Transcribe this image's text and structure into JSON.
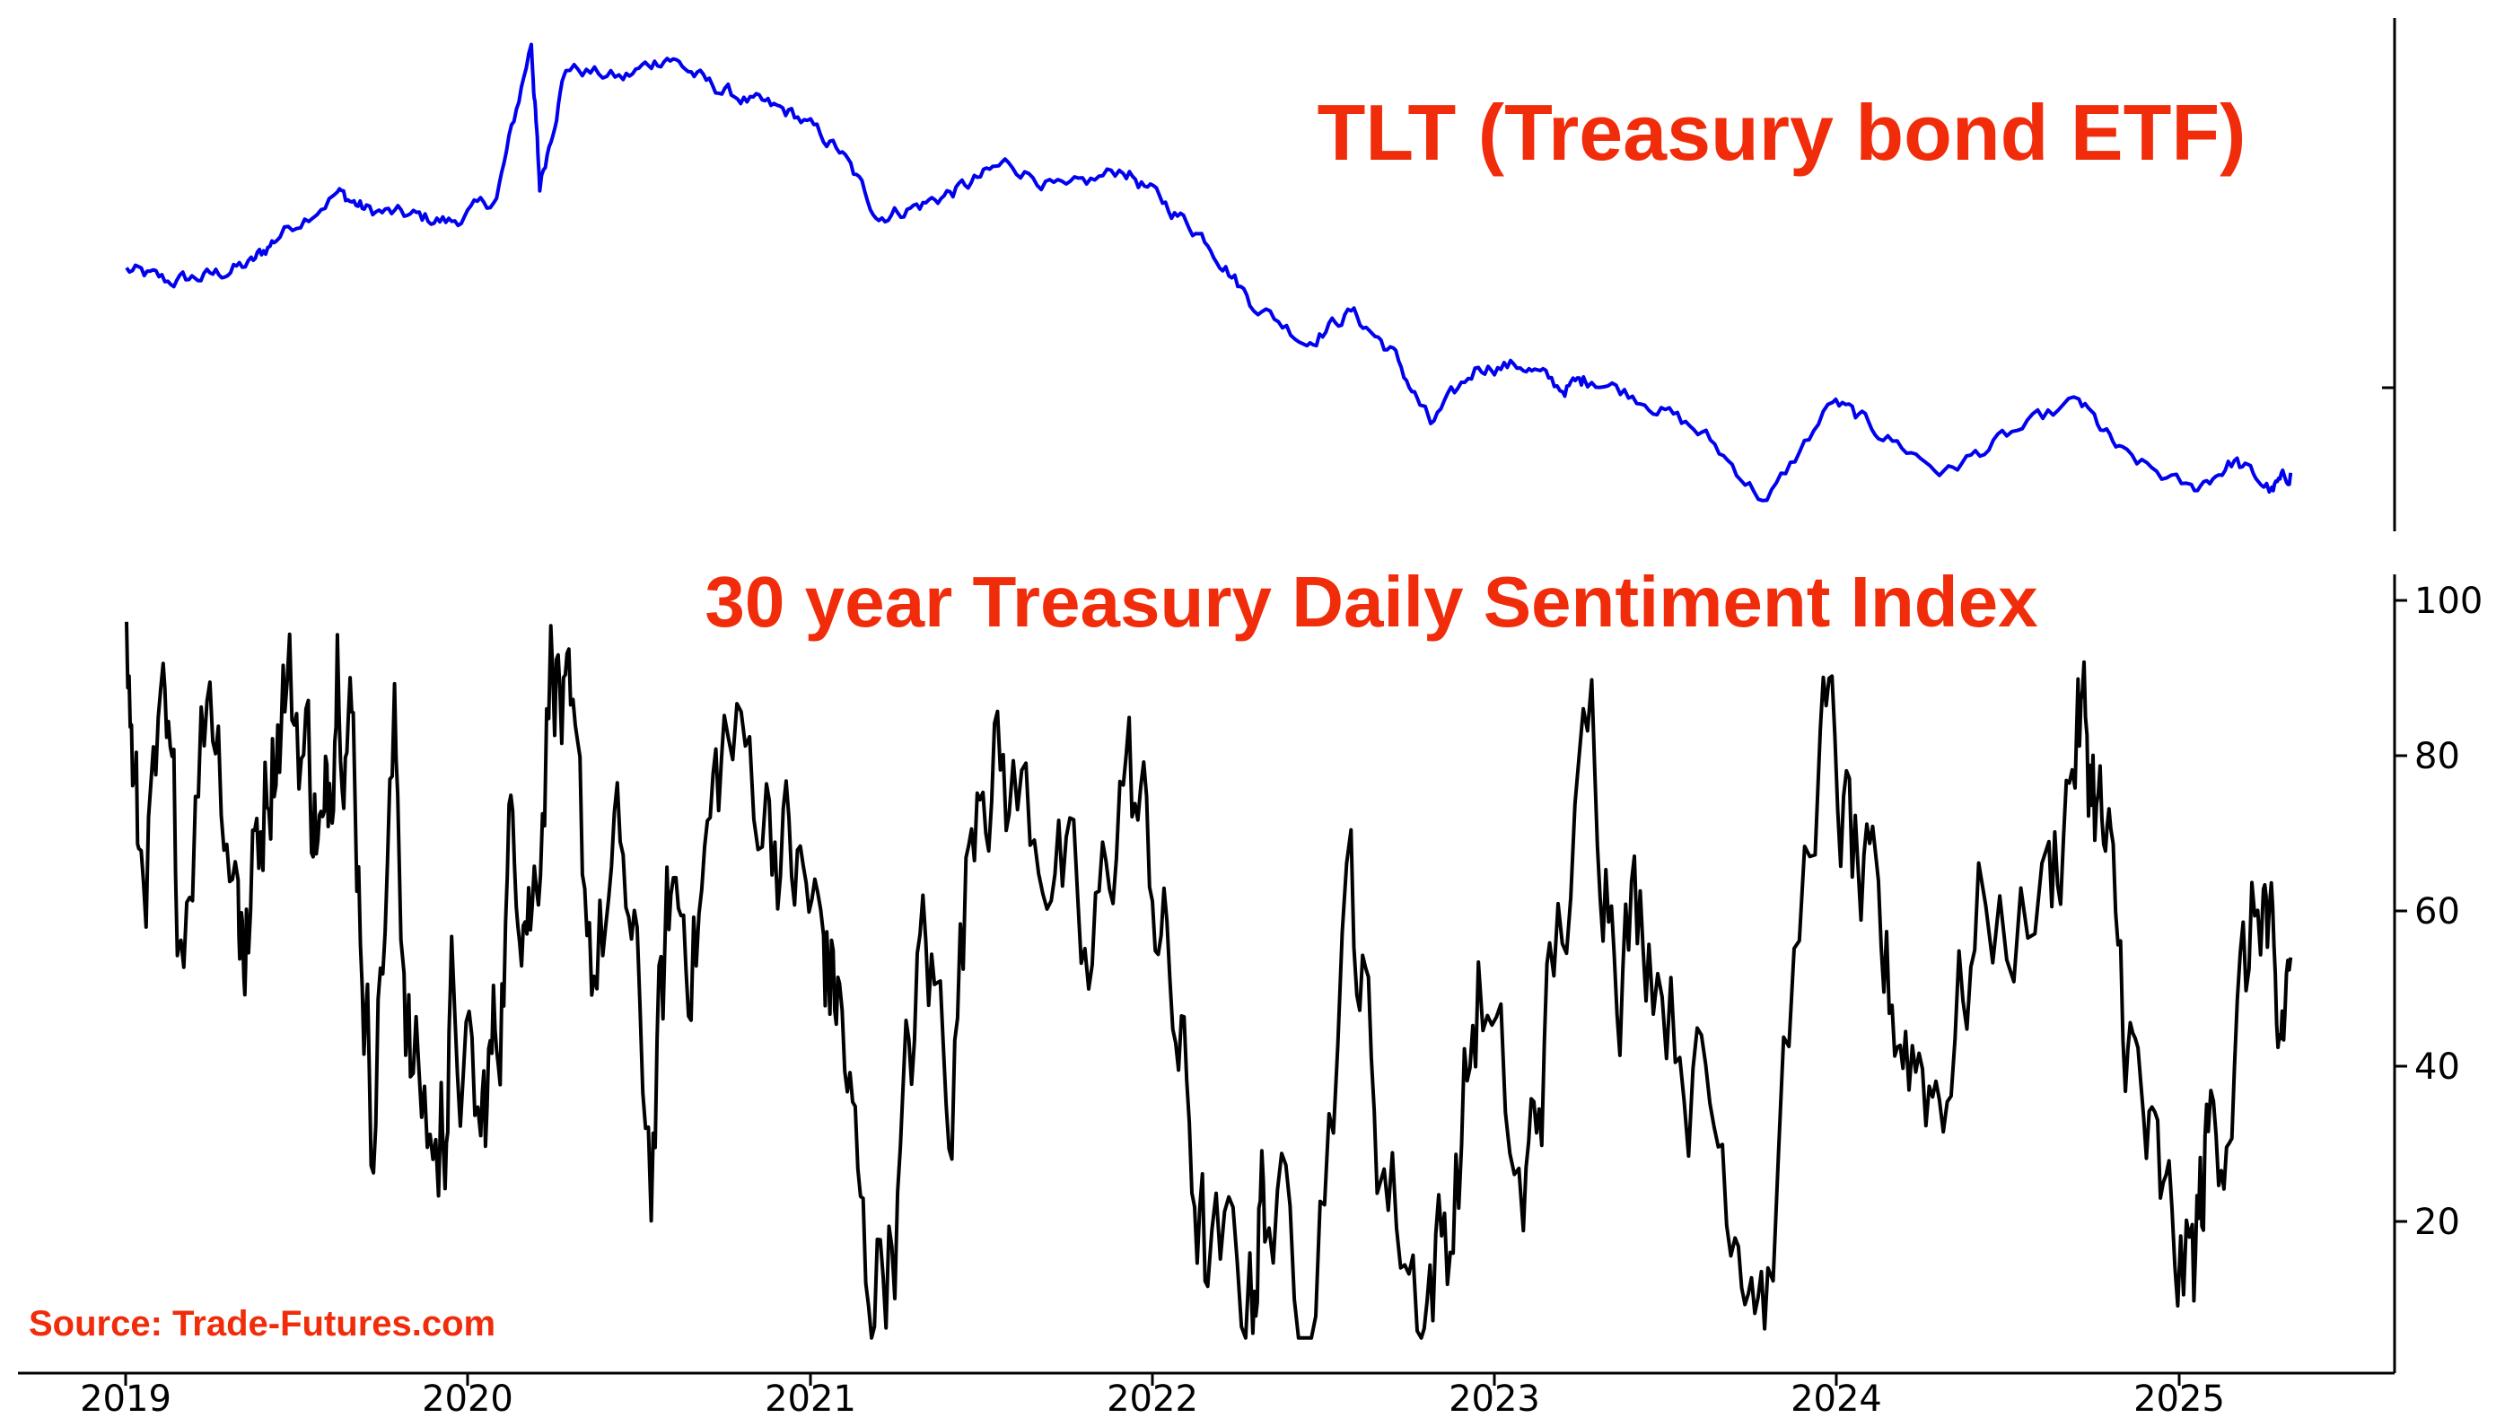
{
  "colors": {
    "tlt_line": "#0000ee",
    "sentiment_line": "#000000",
    "title_red": "#f02c0a",
    "axis": "#000000",
    "background": "#ffffff"
  },
  "source": "Source: Trade-Futures.com",
  "chart_data": [
    {
      "type": "line",
      "title": "TLT (Treasury bond ETF)",
      "xlabel": "",
      "ylabel": "",
      "y_tick_labels_shown": false,
      "grid": false,
      "x_range": [
        "2019-01-01",
        "2025-04-30"
      ],
      "y_scale": "relative price (no printed tick labels)",
      "series": [
        {
          "values": [
            [
              "2019-01-02",
              86
            ],
            [
              "2019-02-15",
              84
            ],
            [
              "2019-04-01",
              85
            ],
            [
              "2019-05-15",
              87
            ],
            [
              "2019-06-15",
              92
            ],
            [
              "2019-08-15",
              99
            ],
            [
              "2019-09-15",
              96
            ],
            [
              "2019-11-01",
              95
            ],
            [
              "2019-12-15",
              94
            ],
            [
              "2020-02-01",
              98
            ],
            [
              "2020-03-09",
              124
            ],
            [
              "2020-03-18",
              100
            ],
            [
              "2020-04-15",
              120
            ],
            [
              "2020-06-15",
              118
            ],
            [
              "2020-08-01",
              122
            ],
            [
              "2020-09-15",
              117
            ],
            [
              "2020-11-01",
              114
            ],
            [
              "2020-12-15",
              112
            ],
            [
              "2021-02-01",
              106
            ],
            [
              "2021-03-15",
              95
            ],
            [
              "2021-05-01",
              97
            ],
            [
              "2021-06-15",
              100
            ],
            [
              "2021-07-31",
              104
            ],
            [
              "2021-10-01",
              99
            ],
            [
              "2021-12-01",
              103
            ],
            [
              "2022-01-15",
              97
            ],
            [
              "2022-03-01",
              91
            ],
            [
              "2022-04-15",
              81
            ],
            [
              "2022-06-15",
              74
            ],
            [
              "2022-08-01",
              79
            ],
            [
              "2022-09-15",
              72
            ],
            [
              "2022-10-25",
              60
            ],
            [
              "2022-12-15",
              70
            ],
            [
              "2023-02-01",
              70
            ],
            [
              "2023-03-15",
              66
            ],
            [
              "2023-04-15",
              68
            ],
            [
              "2023-06-15",
              64
            ],
            [
              "2023-08-15",
              58
            ],
            [
              "2023-10-19",
              47
            ],
            [
              "2023-12-28",
              64
            ],
            [
              "2024-02-15",
              59
            ],
            [
              "2024-04-25",
              52
            ],
            [
              "2024-07-01",
              58
            ],
            [
              "2024-09-16",
              64
            ],
            [
              "2024-11-01",
              55
            ],
            [
              "2025-01-14",
              49
            ],
            [
              "2025-03-01",
              54
            ],
            [
              "2025-04-10",
              49
            ],
            [
              "2025-04-30",
              52
            ]
          ]
        }
      ]
    },
    {
      "type": "line",
      "title": "30 year Treasury Daily Sentiment Index",
      "xlabel": "",
      "ylabel": "",
      "grid": false,
      "ylim": [
        2,
        102
      ],
      "y_ticks": [
        "20",
        "40",
        "60",
        "80",
        "100"
      ],
      "x_ticks": [
        "2019",
        "2020",
        "2021",
        "2022",
        "2023",
        "2024",
        "2025"
      ],
      "x_range": [
        "2019-01-01",
        "2025-04-30"
      ],
      "series": [
        {
          "values": [
            [
              "2019-01-02",
              92
            ],
            [
              "2019-01-15",
              65
            ],
            [
              "2019-02-10",
              78
            ],
            [
              "2019-03-01",
              60
            ],
            [
              "2019-04-01",
              93
            ],
            [
              "2019-05-01",
              63
            ],
            [
              "2019-05-10",
              55
            ],
            [
              "2019-06-01",
              80
            ],
            [
              "2019-06-20",
              90
            ],
            [
              "2019-07-15",
              80
            ],
            [
              "2019-08-01",
              65
            ],
            [
              "2019-08-15",
              98
            ],
            [
              "2019-09-01",
              80
            ],
            [
              "2019-09-20",
              35
            ],
            [
              "2019-10-15",
              80
            ],
            [
              "2019-11-01",
              40
            ],
            [
              "2019-12-01",
              28
            ],
            [
              "2019-12-15",
              45
            ],
            [
              "2020-01-15",
              30
            ],
            [
              "2020-02-01",
              45
            ],
            [
              "2020-02-20",
              73
            ],
            [
              "2020-03-10",
              60
            ],
            [
              "2020-04-01",
              97
            ],
            [
              "2020-04-20",
              75
            ],
            [
              "2020-05-15",
              55
            ],
            [
              "2020-06-15",
              65
            ],
            [
              "2020-07-15",
              28
            ],
            [
              "2020-08-05",
              62
            ],
            [
              "2020-09-01",
              58
            ],
            [
              "2020-10-01",
              82
            ],
            [
              "2020-11-15",
              75
            ],
            [
              "2020-12-15",
              65
            ],
            [
              "2021-01-15",
              55
            ],
            [
              "2021-02-01",
              48
            ],
            [
              "2021-03-01",
              12
            ],
            [
              "2021-04-01",
              20
            ],
            [
              "2021-05-01",
              55
            ],
            [
              "2021-06-01",
              40
            ],
            [
              "2021-07-01",
              85
            ],
            [
              "2021-08-01",
              75
            ],
            [
              "2021-09-15",
              70
            ],
            [
              "2021-10-25",
              48
            ],
            [
              "2021-12-01",
              80
            ],
            [
              "2022-01-01",
              65
            ],
            [
              "2022-02-01",
              40
            ],
            [
              "2022-03-01",
              12
            ],
            [
              "2022-04-15",
              12
            ],
            [
              "2022-05-01",
              25
            ],
            [
              "2022-06-15",
              8
            ],
            [
              "2022-08-01",
              63
            ],
            [
              "2022-09-01",
              30
            ],
            [
              "2022-10-15",
              10
            ],
            [
              "2022-11-15",
              20
            ],
            [
              "2022-12-15",
              50
            ],
            [
              "2023-02-01",
              20
            ],
            [
              "2023-03-01",
              48
            ],
            [
              "2023-04-15",
              82
            ],
            [
              "2023-05-15",
              58
            ],
            [
              "2023-06-15",
              60
            ],
            [
              "2023-08-01",
              40
            ],
            [
              "2023-09-15",
              25
            ],
            [
              "2023-10-20",
              12
            ],
            [
              "2023-12-15",
              85
            ],
            [
              "2024-01-15",
              68
            ],
            [
              "2024-02-15",
              52
            ],
            [
              "2024-03-15",
              45
            ],
            [
              "2024-04-20",
              38
            ],
            [
              "2024-06-01",
              58
            ],
            [
              "2024-08-15",
              62
            ],
            [
              "2024-09-15",
              85
            ],
            [
              "2024-10-01",
              78
            ],
            [
              "2024-10-20",
              60
            ],
            [
              "2024-11-15",
              38
            ],
            [
              "2024-12-15",
              18
            ],
            [
              "2025-01-15",
              12
            ],
            [
              "2025-02-01",
              30
            ],
            [
              "2025-03-01",
              42
            ],
            [
              "2025-04-01",
              64
            ],
            [
              "2025-04-15",
              38
            ],
            [
              "2025-04-30",
              54
            ]
          ]
        }
      ]
    }
  ]
}
